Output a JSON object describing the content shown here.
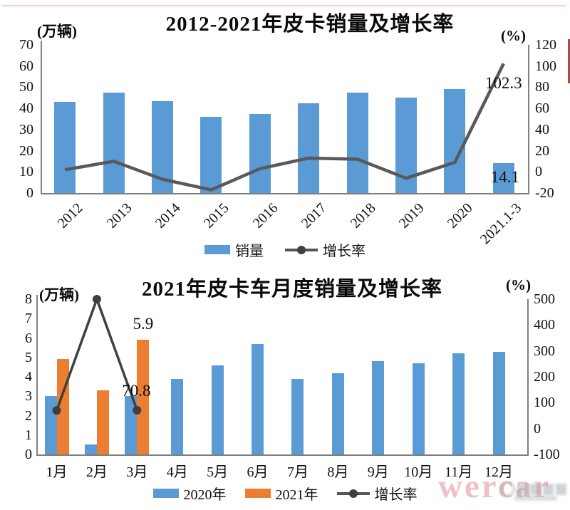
{
  "chart_data": [
    {
      "type": "bar",
      "subtype": "bar+line combo, dual axis",
      "title": "2012-2021年皮卡销量及增长率",
      "categories": [
        "2012",
        "2013",
        "2014",
        "2015",
        "2016",
        "2017",
        "2018",
        "2019",
        "2020",
        "2021.1-3"
      ],
      "left_axis": {
        "unit": "(万辆)",
        "min": 0,
        "max": 70,
        "ticks": [
          0,
          10,
          20,
          30,
          40,
          50,
          60,
          70
        ]
      },
      "right_axis": {
        "unit": "(%)",
        "min": -20,
        "max": 120,
        "ticks": [
          -20,
          0,
          20,
          40,
          60,
          80,
          100,
          120
        ]
      },
      "series": [
        {
          "name": "销量",
          "type": "bar",
          "axis": "left",
          "color": "#5B9BD5",
          "values": [
            43,
            47.5,
            43.5,
            36,
            37.5,
            42.5,
            47.5,
            45,
            49,
            14.1
          ]
        },
        {
          "name": "增长率",
          "type": "line",
          "axis": "right",
          "color": "#595959",
          "values": [
            2,
            10,
            -7,
            -17,
            3,
            13,
            12,
            -6,
            9,
            102.3
          ]
        }
      ],
      "annotations": [
        {
          "text": "102.3",
          "category_index": 9,
          "axis": "right",
          "value": 102.3
        },
        {
          "text": "14.1",
          "category_index": 9,
          "axis": "left",
          "value": 14.1
        }
      ],
      "legend": [
        {
          "label": "销量",
          "marker": "bar",
          "color": "#5B9BD5"
        },
        {
          "label": "增长率",
          "marker": "line",
          "color": "#595959"
        }
      ],
      "legend_position": "bottom-center",
      "grid": false
    },
    {
      "type": "bar",
      "subtype": "grouped bar+line combo, dual axis",
      "title": "2021年皮卡车月度销量及增长率",
      "categories": [
        "1月",
        "2月",
        "3月",
        "4月",
        "5月",
        "6月",
        "7月",
        "8月",
        "9月",
        "10月",
        "11月",
        "12月"
      ],
      "left_axis": {
        "unit": "(万辆)",
        "min": 0,
        "max": 8,
        "ticks": [
          0,
          1,
          2,
          3,
          4,
          5,
          6,
          7,
          8
        ]
      },
      "right_axis": {
        "unit": "(%)",
        "min": -100,
        "max": 500,
        "ticks": [
          -100,
          0,
          100,
          200,
          300,
          400,
          500
        ]
      },
      "series": [
        {
          "name": "2020年",
          "type": "bar",
          "axis": "left",
          "color": "#5B9BD5",
          "values": [
            3,
            0.5,
            3,
            3.9,
            4.6,
            5.7,
            3.9,
            4.2,
            4.8,
            4.7,
            5.2,
            5.3
          ]
        },
        {
          "name": "2021年",
          "type": "bar",
          "axis": "left",
          "color": "#ED7D31",
          "values": [
            4.9,
            3.3,
            5.9,
            null,
            null,
            null,
            null,
            null,
            null,
            null,
            null,
            null
          ]
        },
        {
          "name": "增长率",
          "type": "line",
          "axis": "right",
          "color": "#404040",
          "marker": "dot",
          "values": [
            70,
            500,
            70.8,
            null,
            null,
            null,
            null,
            null,
            null,
            null,
            null,
            null
          ]
        }
      ],
      "annotations": [
        {
          "text": "5.9",
          "category_index": 2,
          "axis": "left",
          "value": 5.9,
          "series": "2021年"
        },
        {
          "text": "70.8",
          "category_index": 2,
          "axis": "right",
          "value": 70.8
        }
      ],
      "legend": [
        {
          "label": "2020年",
          "marker": "bar",
          "color": "#5B9BD5"
        },
        {
          "label": "2021年",
          "marker": "bar",
          "color": "#ED7D31"
        },
        {
          "label": "增长率",
          "marker": "line",
          "color": "#404040"
        }
      ],
      "legend_position": "bottom-center",
      "grid": false
    }
  ],
  "watermark": {
    "text": "wercar"
  }
}
